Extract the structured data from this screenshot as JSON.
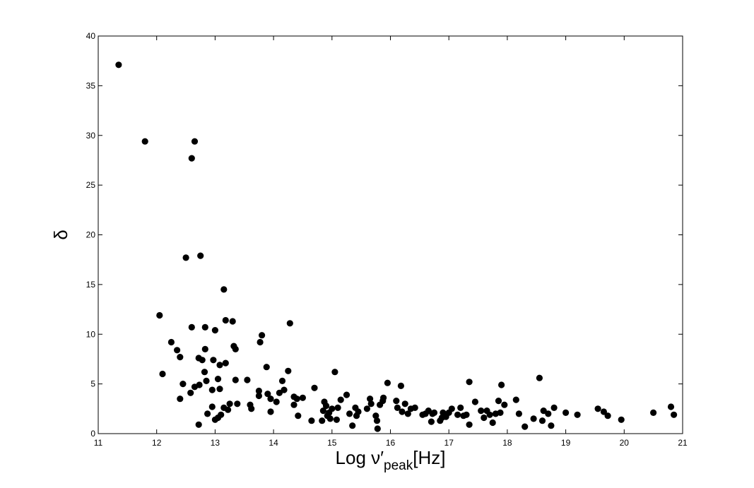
{
  "chart_data": {
    "type": "scatter",
    "title": "",
    "xlabel": {
      "main": "Log ν′",
      "subscript": "peak",
      "suffix": "[Hz]"
    },
    "ylabel": "δ",
    "xlim": [
      11,
      21
    ],
    "ylim": [
      0,
      40
    ],
    "xticks": [
      11,
      12,
      13,
      14,
      15,
      16,
      17,
      18,
      19,
      20,
      21
    ],
    "yticks": [
      0,
      5,
      10,
      15,
      20,
      25,
      30,
      35,
      40
    ],
    "grid": false,
    "legend": "none",
    "marker_color": "#000000",
    "series": [
      {
        "points": [
          [
            11.35,
            37.1
          ],
          [
            11.8,
            29.4
          ],
          [
            12.6,
            27.7
          ],
          [
            12.65,
            29.4
          ],
          [
            12.5,
            17.7
          ],
          [
            12.75,
            17.9
          ],
          [
            13.15,
            14.5
          ],
          [
            12.05,
            11.9
          ],
          [
            12.1,
            6.0
          ],
          [
            12.25,
            9.2
          ],
          [
            12.35,
            8.4
          ],
          [
            12.4,
            7.7
          ],
          [
            12.4,
            3.5
          ],
          [
            12.45,
            5.0
          ],
          [
            12.58,
            4.1
          ],
          [
            12.6,
            10.7
          ],
          [
            12.65,
            4.7
          ],
          [
            12.72,
            0.9
          ],
          [
            12.72,
            7.6
          ],
          [
            12.73,
            4.9
          ],
          [
            12.78,
            7.4
          ],
          [
            12.82,
            6.2
          ],
          [
            12.83,
            8.5
          ],
          [
            12.83,
            10.7
          ],
          [
            12.85,
            5.3
          ],
          [
            12.87,
            2.0
          ],
          [
            12.95,
            4.4
          ],
          [
            12.95,
            2.7
          ],
          [
            12.97,
            7.4
          ],
          [
            13.0,
            10.4
          ],
          [
            13.0,
            1.4
          ],
          [
            13.05,
            5.5
          ],
          [
            13.05,
            1.6
          ],
          [
            13.08,
            6.9
          ],
          [
            13.08,
            4.5
          ],
          [
            13.1,
            1.9
          ],
          [
            13.15,
            2.6
          ],
          [
            13.18,
            7.1
          ],
          [
            13.18,
            11.4
          ],
          [
            13.22,
            2.4
          ],
          [
            13.25,
            3.0
          ],
          [
            13.3,
            11.3
          ],
          [
            13.32,
            8.8
          ],
          [
            13.35,
            8.5
          ],
          [
            13.35,
            5.4
          ],
          [
            13.38,
            3.0
          ],
          [
            13.55,
            5.4
          ],
          [
            13.6,
            2.9
          ],
          [
            13.62,
            2.5
          ],
          [
            13.75,
            4.3
          ],
          [
            13.75,
            3.8
          ],
          [
            13.77,
            9.2
          ],
          [
            13.8,
            9.9
          ],
          [
            13.88,
            6.7
          ],
          [
            13.9,
            4.0
          ],
          [
            13.95,
            3.5
          ],
          [
            13.95,
            2.2
          ],
          [
            14.05,
            3.2
          ],
          [
            14.1,
            4.1
          ],
          [
            14.15,
            5.3
          ],
          [
            14.18,
            4.4
          ],
          [
            14.25,
            6.3
          ],
          [
            14.28,
            11.1
          ],
          [
            14.35,
            2.9
          ],
          [
            14.35,
            3.7
          ],
          [
            14.4,
            3.5
          ],
          [
            14.42,
            1.8
          ],
          [
            14.5,
            3.6
          ],
          [
            14.65,
            1.3
          ],
          [
            14.7,
            4.6
          ],
          [
            14.83,
            1.3
          ],
          [
            14.85,
            2.3
          ],
          [
            14.87,
            3.2
          ],
          [
            14.9,
            2.8
          ],
          [
            14.92,
            1.8
          ],
          [
            14.95,
            2.1
          ],
          [
            14.97,
            1.5
          ],
          [
            15.0,
            2.5
          ],
          [
            15.05,
            6.2
          ],
          [
            15.08,
            1.4
          ],
          [
            15.1,
            2.6
          ],
          [
            15.15,
            3.4
          ],
          [
            15.25,
            3.9
          ],
          [
            15.3,
            2.0
          ],
          [
            15.35,
            0.8
          ],
          [
            15.4,
            2.6
          ],
          [
            15.42,
            1.8
          ],
          [
            15.45,
            2.2
          ],
          [
            15.6,
            2.5
          ],
          [
            15.65,
            3.5
          ],
          [
            15.67,
            3.0
          ],
          [
            15.75,
            1.8
          ],
          [
            15.77,
            1.3
          ],
          [
            15.78,
            0.5
          ],
          [
            15.82,
            2.9
          ],
          [
            15.87,
            3.3
          ],
          [
            15.88,
            3.6
          ],
          [
            15.95,
            5.1
          ],
          [
            16.1,
            3.3
          ],
          [
            16.12,
            2.6
          ],
          [
            16.18,
            4.8
          ],
          [
            16.2,
            2.2
          ],
          [
            16.25,
            3.0
          ],
          [
            16.3,
            2.0
          ],
          [
            16.35,
            2.5
          ],
          [
            16.42,
            2.6
          ],
          [
            16.55,
            1.9
          ],
          [
            16.6,
            2.0
          ],
          [
            16.65,
            2.3
          ],
          [
            16.7,
            1.2
          ],
          [
            16.72,
            2.0
          ],
          [
            16.75,
            2.1
          ],
          [
            16.85,
            1.3
          ],
          [
            16.88,
            1.6
          ],
          [
            16.9,
            2.1
          ],
          [
            16.95,
            1.7
          ],
          [
            17.0,
            2.1
          ],
          [
            17.05,
            2.5
          ],
          [
            17.15,
            1.9
          ],
          [
            17.2,
            2.6
          ],
          [
            17.25,
            1.8
          ],
          [
            17.3,
            1.9
          ],
          [
            17.35,
            0.9
          ],
          [
            17.35,
            5.2
          ],
          [
            17.45,
            3.2
          ],
          [
            17.55,
            2.3
          ],
          [
            17.6,
            1.6
          ],
          [
            17.65,
            2.3
          ],
          [
            17.7,
            1.9
          ],
          [
            17.75,
            1.1
          ],
          [
            17.8,
            2.0
          ],
          [
            17.85,
            3.3
          ],
          [
            17.88,
            2.1
          ],
          [
            17.9,
            4.9
          ],
          [
            17.95,
            2.9
          ],
          [
            18.15,
            3.4
          ],
          [
            18.2,
            2.0
          ],
          [
            18.3,
            0.7
          ],
          [
            18.45,
            1.5
          ],
          [
            18.55,
            5.6
          ],
          [
            18.6,
            1.3
          ],
          [
            18.62,
            2.3
          ],
          [
            18.7,
            2.0
          ],
          [
            18.75,
            0.8
          ],
          [
            18.8,
            2.6
          ],
          [
            19.0,
            2.1
          ],
          [
            19.2,
            1.9
          ],
          [
            19.55,
            2.5
          ],
          [
            19.65,
            2.2
          ],
          [
            19.72,
            1.8
          ],
          [
            19.95,
            1.4
          ],
          [
            20.5,
            2.1
          ],
          [
            20.8,
            2.7
          ],
          [
            20.85,
            1.9
          ]
        ]
      }
    ]
  }
}
